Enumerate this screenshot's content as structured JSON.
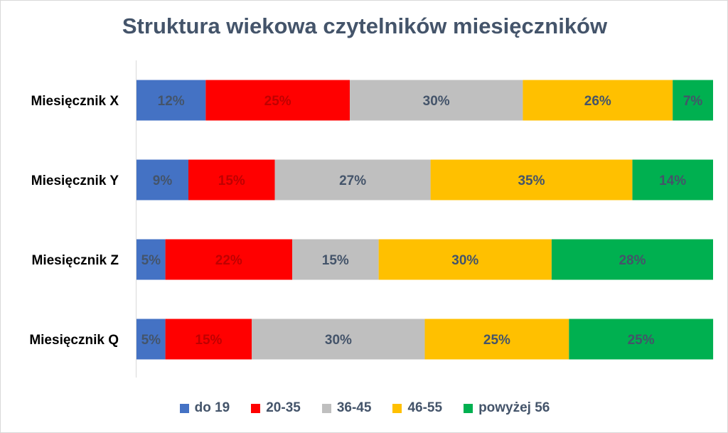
{
  "chart_data": {
    "type": "bar",
    "orientation": "horizontal",
    "stacked": "100%",
    "title": "Struktura wiekowa czytelników miesięczników",
    "categories": [
      "Miesięcznik X",
      "Miesięcznik Y",
      "Miesięcznik Z",
      "Miesięcznik Q"
    ],
    "series": [
      {
        "name": "do 19",
        "color": "#4472c4",
        "label_color": "#44546a",
        "values": [
          12,
          9,
          5,
          5
        ]
      },
      {
        "name": "20-35",
        "color": "#ff0000",
        "label_color": "#c00000",
        "values": [
          25,
          15,
          22,
          15
        ]
      },
      {
        "name": "36-45",
        "color": "#bfbfbf",
        "label_color": "#44546a",
        "values": [
          30,
          27,
          15,
          30
        ]
      },
      {
        "name": "46-55",
        "color": "#ffc000",
        "label_color": "#44546a",
        "values": [
          26,
          35,
          30,
          25
        ]
      },
      {
        "name": "powyżej 56",
        "color": "#00b050",
        "label_color": "#44546a",
        "values": [
          7,
          14,
          28,
          25
        ]
      }
    ],
    "value_suffix": "%",
    "xlim": [
      0,
      100
    ],
    "legend_position": "bottom",
    "grid": false
  }
}
